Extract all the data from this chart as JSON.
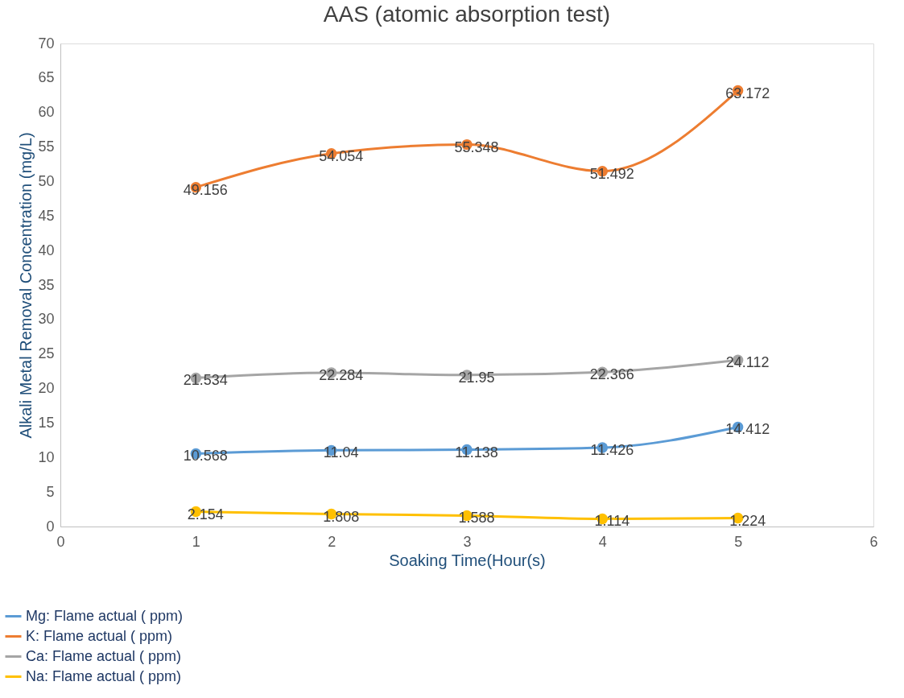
{
  "chart_data": {
    "type": "line",
    "title": "AAS (atomic absorption test)",
    "xlabel": "Soaking Time(Hour(s)",
    "ylabel": "Alkali Metal Removal Concentration (mg/L)",
    "x": [
      1,
      2,
      3,
      4,
      5
    ],
    "series": [
      {
        "name": "Mg: Flame actual ( ppm)",
        "color": "#5b9bd5",
        "values": [
          10.568,
          11.04,
          11.138,
          11.426,
          14.412
        ]
      },
      {
        "name": "K: Flame actual ( ppm)",
        "color": "#ed7d31",
        "values": [
          49.156,
          54.054,
          55.348,
          51.492,
          63.172
        ]
      },
      {
        "name": "Ca: Flame actual ( ppm)",
        "color": "#a5a5a5",
        "values": [
          21.534,
          22.284,
          21.95,
          22.366,
          24.112
        ]
      },
      {
        "name": "Na: Flame actual ( ppm)",
        "color": "#ffc000",
        "values": [
          2.154,
          1.808,
          1.588,
          1.114,
          1.224
        ]
      }
    ],
    "xlim": [
      0,
      6
    ],
    "xticks": [
      0,
      1,
      2,
      3,
      4,
      5,
      6
    ],
    "ylim": [
      0,
      70
    ],
    "yticks": [
      0,
      5,
      10,
      15,
      20,
      25,
      30,
      35,
      40,
      45,
      50,
      55,
      60,
      65,
      70
    ],
    "data_labels": true,
    "grid": false,
    "legend": "bottom left",
    "marker": "circle",
    "line_style": "solid"
  }
}
